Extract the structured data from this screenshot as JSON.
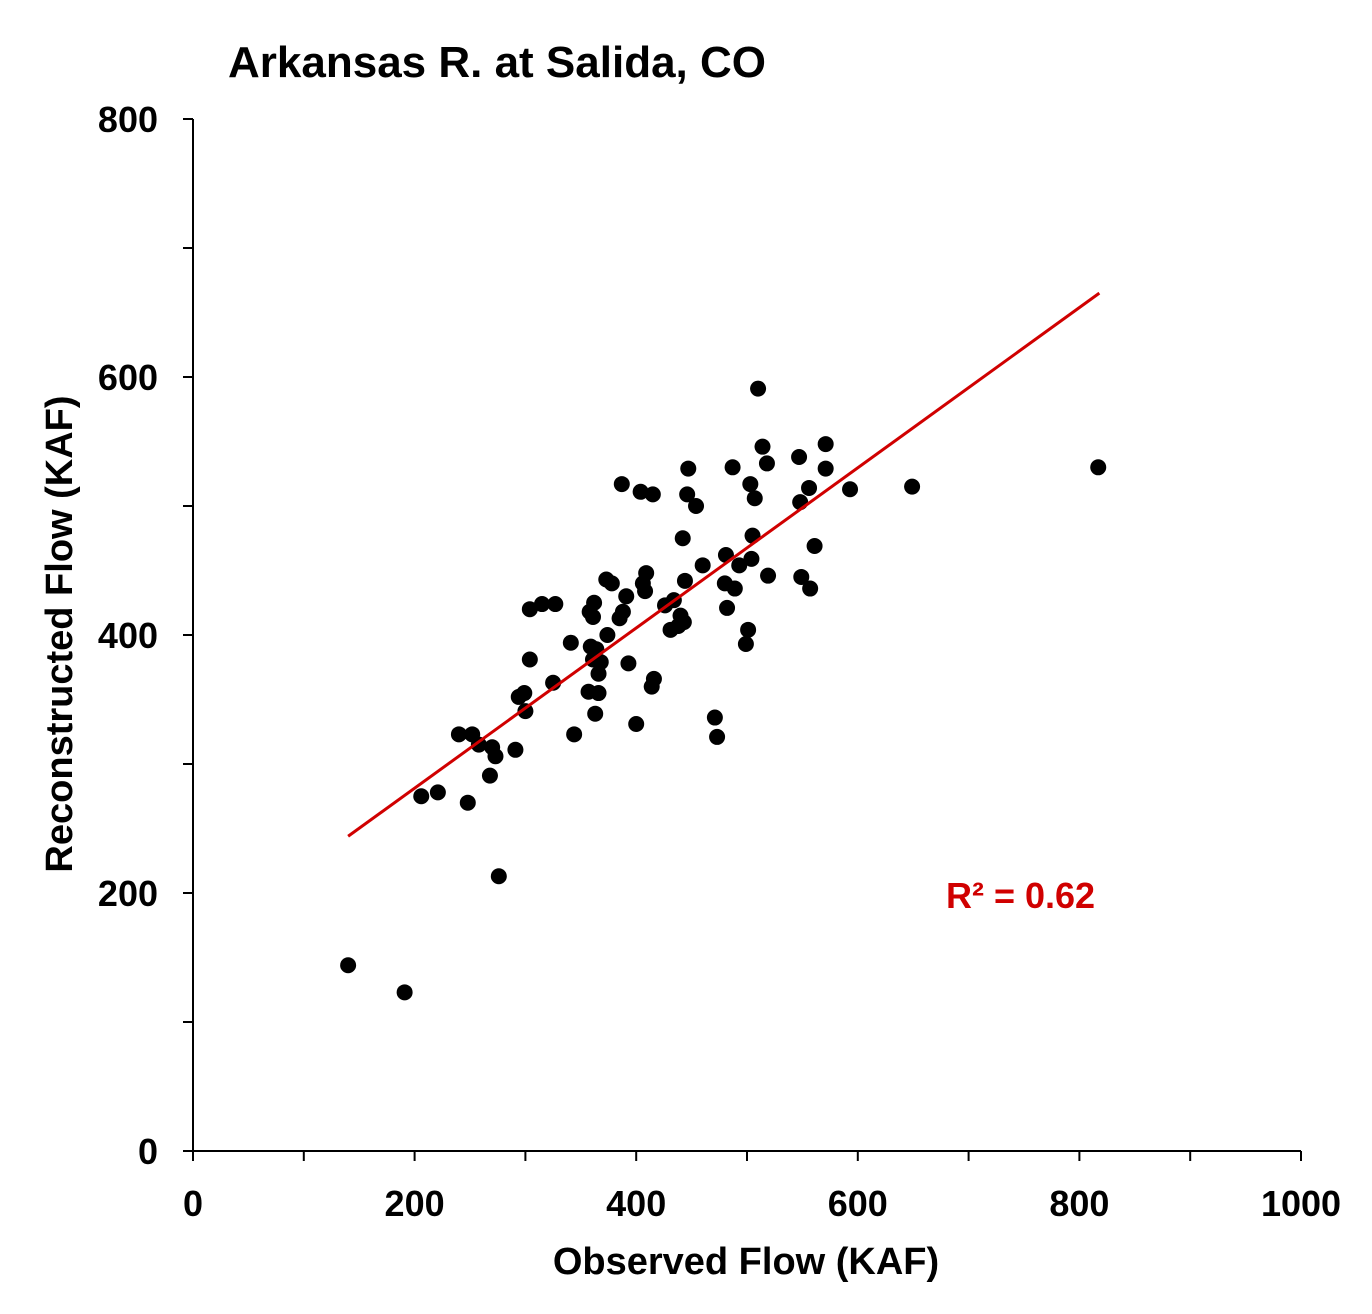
{
  "chart_data": {
    "type": "scatter",
    "title": "Arkansas R. at Salida, CO",
    "xlabel": "Observed Flow (KAF)",
    "ylabel": "Reconstructed Flow (KAF)",
    "xlim": [
      0,
      1000
    ],
    "ylim": [
      0,
      800
    ],
    "x_major_ticks": [
      0,
      200,
      400,
      600,
      800,
      1000
    ],
    "x_minor_ticks": [
      100,
      300,
      500,
      700,
      900
    ],
    "y_major_ticks": [
      0,
      200,
      400,
      600,
      800
    ],
    "y_minor_ticks": [
      100,
      300,
      500,
      700
    ],
    "grid": false,
    "point_color": "#000000",
    "trendline": {
      "x": [
        140,
        818
      ],
      "y": [
        244,
        665
      ],
      "color": "#d00000"
    },
    "annotation": {
      "text": "R² = 0.62",
      "color": "#d00000"
    },
    "points": [
      [
        140,
        144
      ],
      [
        191,
        123
      ],
      [
        206,
        275
      ],
      [
        221,
        278
      ],
      [
        240,
        323
      ],
      [
        248,
        270
      ],
      [
        252,
        323
      ],
      [
        258,
        315
      ],
      [
        268,
        291
      ],
      [
        270,
        313
      ],
      [
        273,
        306
      ],
      [
        276,
        213
      ],
      [
        291,
        311
      ],
      [
        294,
        352
      ],
      [
        299,
        355
      ],
      [
        300,
        341
      ],
      [
        304,
        381
      ],
      [
        304,
        420
      ],
      [
        315,
        424
      ],
      [
        327,
        424
      ],
      [
        325,
        363
      ],
      [
        341,
        394
      ],
      [
        344,
        323
      ],
      [
        357,
        356
      ],
      [
        358,
        418
      ],
      [
        359,
        391
      ],
      [
        361,
        414
      ],
      [
        362,
        425
      ],
      [
        361,
        381
      ],
      [
        363,
        339
      ],
      [
        364,
        389
      ],
      [
        366,
        355
      ],
      [
        366,
        370
      ],
      [
        368,
        379
      ],
      [
        373,
        443
      ],
      [
        374,
        400
      ],
      [
        378,
        440
      ],
      [
        385,
        413
      ],
      [
        387,
        517
      ],
      [
        388,
        418
      ],
      [
        391,
        430
      ],
      [
        393,
        378
      ],
      [
        400,
        331
      ],
      [
        404,
        511
      ],
      [
        406,
        440
      ],
      [
        408,
        434
      ],
      [
        409,
        448
      ],
      [
        415,
        509
      ],
      [
        414,
        360
      ],
      [
        416,
        366
      ],
      [
        426,
        423
      ],
      [
        431,
        404
      ],
      [
        434,
        427
      ],
      [
        438,
        407
      ],
      [
        440,
        415
      ],
      [
        442,
        475
      ],
      [
        443,
        410
      ],
      [
        444,
        442
      ],
      [
        446,
        509
      ],
      [
        447,
        529
      ],
      [
        454,
        500
      ],
      [
        460,
        454
      ],
      [
        471,
        336
      ],
      [
        473,
        321
      ],
      [
        480,
        440
      ],
      [
        481,
        462
      ],
      [
        482,
        421
      ],
      [
        487,
        530
      ],
      [
        489,
        436
      ],
      [
        493,
        454
      ],
      [
        499,
        393
      ],
      [
        501,
        404
      ],
      [
        503,
        517
      ],
      [
        504,
        459
      ],
      [
        505,
        477
      ],
      [
        507,
        506
      ],
      [
        510,
        591
      ],
      [
        514,
        546
      ],
      [
        518,
        533
      ],
      [
        519,
        446
      ],
      [
        547,
        538
      ],
      [
        548,
        503
      ],
      [
        549,
        445
      ],
      [
        556,
        514
      ],
      [
        557,
        436
      ],
      [
        561,
        469
      ],
      [
        571,
        548
      ],
      [
        571,
        529
      ],
      [
        593,
        513
      ],
      [
        649,
        515
      ],
      [
        817,
        530
      ]
    ]
  }
}
